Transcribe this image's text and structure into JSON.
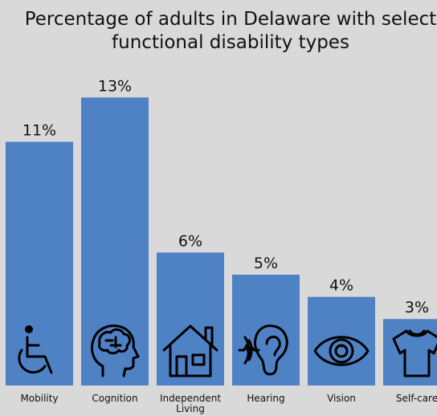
{
  "chart_data": {
    "type": "bar",
    "title_lines": [
      "Percentage of adults in Delaware with select",
      "functional disability types"
    ],
    "categories": [
      "Mobility",
      "Cognition",
      "Independent Living",
      "Hearing",
      "Vision",
      "Self-care"
    ],
    "category_label_lines": [
      [
        "Mobility"
      ],
      [
        "Cognition"
      ],
      [
        "Independent",
        "Living"
      ],
      [
        "Hearing"
      ],
      [
        "Vision"
      ],
      [
        "Self-care"
      ]
    ],
    "values": [
      11,
      13,
      6,
      5,
      4,
      3
    ],
    "value_labels": [
      "11%",
      "13%",
      "6%",
      "5%",
      "4%",
      "3%"
    ],
    "ylim": [
      0,
      14.5
    ],
    "icons": [
      "wheelchair-icon",
      "brain-head-icon",
      "house-icon",
      "ear-icon",
      "eye-icon",
      "shirt-icon"
    ],
    "bar_color": "#4f81c5",
    "grid": false,
    "legend": "none"
  }
}
